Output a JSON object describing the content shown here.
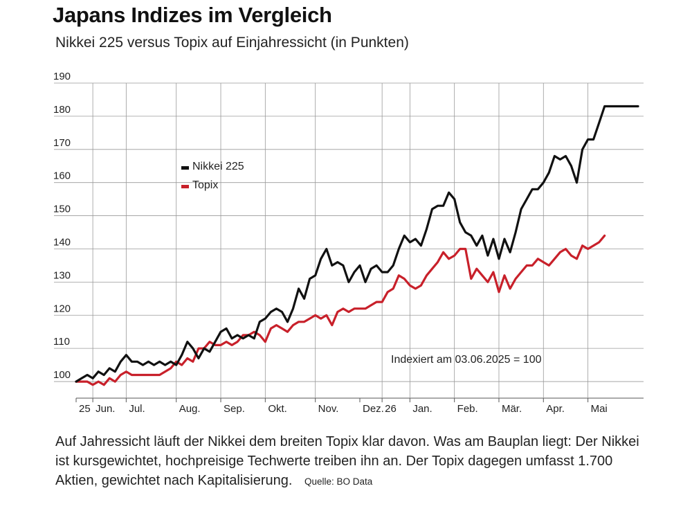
{
  "header": {
    "title": "Japans Indizes im Vergleich",
    "subtitle": "Nikkei 225 versus Topix auf Einjahressicht (in Punkten)"
  },
  "caption": {
    "text": "Auf Jahressicht läuft der Nikkei dem breiten Topix klar davon. Was am Bauplan liegt: Der Nikkei ist kursgewichtet, hochpreisige Techwerte treiben ihn an. Der Topix dagegen umfasst 1.700 Aktien, gewichtet nach Kapitalisierung.",
    "source": "Quelle: BO Data"
  },
  "colors": {
    "nikkei": "#111111",
    "topix": "#c8202a",
    "grid": "#888888"
  },
  "chart_data": {
    "type": "line",
    "title": "Japans Indizes im Vergleich",
    "subtitle": "Nikkei 225 versus Topix auf Einjahressicht (in Punkten)",
    "annotation": "Indexiert am 03.06.2025 = 100",
    "ylim": [
      95,
      190
    ],
    "yticks": [
      100,
      110,
      120,
      130,
      140,
      150,
      160,
      170,
      180,
      190
    ],
    "xlim": [
      0,
      51
    ],
    "x_ticks": [
      {
        "label": "25",
        "x": 0,
        "grid": false
      },
      {
        "label": "Jun.",
        "x": 1.5,
        "grid": true
      },
      {
        "label": "Jul.",
        "x": 4.5,
        "grid": true
      },
      {
        "label": "Aug.",
        "x": 9,
        "grid": true
      },
      {
        "label": "Sep.",
        "x": 13,
        "grid": true
      },
      {
        "label": "Okt.",
        "x": 17,
        "grid": true
      },
      {
        "label": "Nov.",
        "x": 21.5,
        "grid": true
      },
      {
        "label": "Dez.",
        "x": 25.5,
        "grid": false
      },
      {
        "label": "26",
        "x": 27.5,
        "grid": true
      },
      {
        "label": "Jan.",
        "x": 30,
        "grid": true
      },
      {
        "label": "Feb.",
        "x": 34,
        "grid": true
      },
      {
        "label": "Mär.",
        "x": 38,
        "grid": true
      },
      {
        "label": "Apr.",
        "x": 42,
        "grid": true
      },
      {
        "label": "Mai",
        "x": 46,
        "grid": true
      }
    ],
    "grid": true,
    "legend": {
      "placement": "upper-left"
    },
    "series": [
      {
        "name": "Nikkei 225",
        "color": "#111111",
        "x": [
          0,
          0.5,
          1,
          1.5,
          2,
          2.5,
          3,
          3.5,
          4,
          4.5,
          5,
          5.5,
          6,
          6.5,
          7,
          7.5,
          8,
          8.5,
          9,
          9.5,
          10,
          10.5,
          11,
          11.5,
          12,
          12.5,
          13,
          13.5,
          14,
          14.5,
          15,
          15.5,
          16,
          16.5,
          17,
          17.5,
          18,
          18.5,
          19,
          19.5,
          20,
          20.5,
          21,
          21.5,
          22,
          22.5,
          23,
          23.5,
          24,
          24.5,
          25,
          25.5,
          26,
          26.5,
          27,
          27.5,
          28,
          28.5,
          29,
          29.5,
          30,
          30.5,
          31,
          31.5,
          32,
          32.5,
          33,
          33.5,
          34,
          34.5,
          35,
          35.5,
          36,
          36.5,
          37,
          37.5,
          38,
          38.5,
          39,
          39.5,
          40,
          40.5,
          41,
          41.5,
          42,
          42.5,
          43,
          43.5,
          44,
          44.5,
          45,
          45.5,
          46,
          46.5,
          47,
          47.5,
          48,
          48.5,
          49,
          49.5,
          50,
          50.5
        ],
        "values": [
          100,
          101,
          102,
          101,
          103,
          102,
          104,
          103,
          106,
          108,
          106,
          106,
          105,
          106,
          105,
          106,
          105,
          106,
          105,
          108,
          112,
          110,
          107,
          110,
          109,
          112,
          115,
          116,
          113,
          114,
          113,
          114,
          113,
          118,
          119,
          121,
          122,
          121,
          118,
          122,
          128,
          125,
          131,
          132,
          137,
          140,
          135,
          136,
          135,
          130,
          133,
          135,
          130,
          134,
          135,
          133,
          133,
          135,
          140,
          144,
          142,
          143,
          141,
          146,
          152,
          153,
          153,
          157,
          155,
          148,
          145,
          144,
          141,
          144,
          138,
          143,
          137,
          143,
          139,
          145,
          152,
          155,
          158,
          158,
          160,
          163,
          168,
          167,
          168,
          165,
          160,
          170,
          173,
          173,
          178,
          183,
          183,
          183,
          183,
          183,
          183,
          183
        ],
        "note": "values after x=47.5 truncated to series end"
      },
      {
        "name": "Topix",
        "color": "#c8202a",
        "x": [
          0,
          0.5,
          1,
          1.5,
          2,
          2.5,
          3,
          3.5,
          4,
          4.5,
          5,
          5.5,
          6,
          6.5,
          7,
          7.5,
          8,
          8.5,
          9,
          9.5,
          10,
          10.5,
          11,
          11.5,
          12,
          12.5,
          13,
          13.5,
          14,
          14.5,
          15,
          15.5,
          16,
          16.5,
          17,
          17.5,
          18,
          18.5,
          19,
          19.5,
          20,
          20.5,
          21,
          21.5,
          22,
          22.5,
          23,
          23.5,
          24,
          24.5,
          25,
          25.5,
          26,
          26.5,
          27,
          27.5,
          28,
          28.5,
          29,
          29.5,
          30,
          30.5,
          31,
          31.5,
          32,
          32.5,
          33,
          33.5,
          34,
          34.5,
          35,
          35.5,
          36,
          36.5,
          37,
          37.5,
          38,
          38.5,
          39,
          39.5,
          40,
          40.5,
          41,
          41.5,
          42,
          42.5,
          43,
          43.5,
          44,
          44.5,
          45,
          45.5,
          46,
          46.5,
          47,
          47.5
        ],
        "values": [
          100,
          100,
          100,
          99,
          100,
          99,
          101,
          100,
          102,
          103,
          102,
          102,
          102,
          102,
          102,
          102,
          103,
          104,
          106,
          105,
          107,
          106,
          110,
          110,
          112,
          111,
          111,
          112,
          111,
          112,
          114,
          114,
          115,
          114,
          112,
          116,
          117,
          116,
          115,
          117,
          118,
          118,
          119,
          120,
          119,
          120,
          117,
          121,
          122,
          121,
          122,
          122,
          122,
          123,
          124,
          124,
          127,
          128,
          132,
          131,
          129,
          128,
          129,
          132,
          134,
          136,
          139,
          137,
          138,
          140,
          140,
          131,
          134,
          132,
          130,
          133,
          127,
          132,
          128,
          131,
          133,
          135,
          135,
          137,
          136,
          135,
          137,
          139,
          140,
          138,
          137,
          141,
          140,
          141,
          142,
          144
        ],
        "note": "estimated from plot"
      }
    ]
  }
}
